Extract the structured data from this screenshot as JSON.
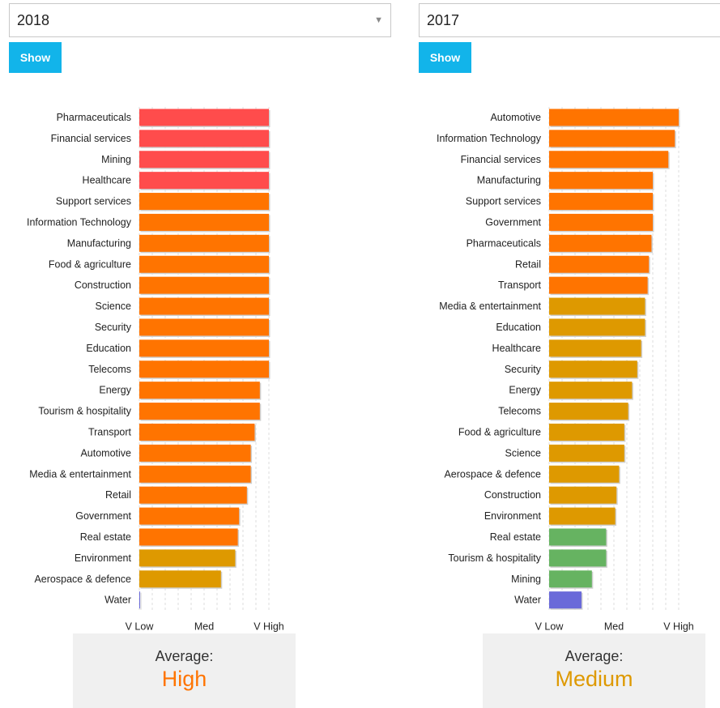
{
  "colors": {
    "very_high": "#ff4c4c",
    "high": "#ff7400",
    "medium": "#de9900",
    "low": "#66b361",
    "very_low": "#6a6ad9"
  },
  "axis_ticks": [
    "V Low",
    "Med",
    "V High"
  ],
  "panels": [
    {
      "select_value": "2018",
      "show_label": "Show",
      "average_label": "Average:",
      "average_value": "High",
      "average_color": "#ff7400",
      "chart_data": {
        "type": "bar",
        "orientation": "horizontal",
        "scale": "V Low (0) to V High (100)",
        "xlim": [
          0,
          100
        ],
        "categories": [
          "Pharmaceuticals",
          "Financial services",
          "Mining",
          "Healthcare",
          "Support services",
          "Information Technology",
          "Manufacturing",
          "Food & agriculture",
          "Construction",
          "Science",
          "Security",
          "Education",
          "Telecoms",
          "Energy",
          "Tourism & hospitality",
          "Transport",
          "Automotive",
          "Media & entertainment",
          "Retail",
          "Government",
          "Real estate",
          "Environment",
          "Aerospace & defence",
          "Water"
        ],
        "values": [
          100,
          100,
          100,
          100,
          100,
          100,
          100,
          100,
          100,
          100,
          100,
          100,
          100,
          93,
          93,
          89,
          86,
          86,
          83,
          77,
          76,
          74,
          63,
          0
        ],
        "levels": [
          "very_high",
          "very_high",
          "very_high",
          "very_high",
          "high",
          "high",
          "high",
          "high",
          "high",
          "high",
          "high",
          "high",
          "high",
          "high",
          "high",
          "high",
          "high",
          "high",
          "high",
          "high",
          "high",
          "medium",
          "medium",
          "very_low"
        ]
      }
    },
    {
      "select_value": "2017",
      "show_label": "Show",
      "average_label": "Average:",
      "average_value": "Medium",
      "average_color": "#de9900",
      "chart_data": {
        "type": "bar",
        "orientation": "horizontal",
        "scale": "V Low (0) to V High (100)",
        "xlim": [
          0,
          100
        ],
        "categories": [
          "Automotive",
          "Information Technology",
          "Financial services",
          "Manufacturing",
          "Support services",
          "Government",
          "Pharmaceuticals",
          "Retail",
          "Transport",
          "Media & entertainment",
          "Education",
          "Healthcare",
          "Security",
          "Energy",
          "Telecoms",
          "Food & agriculture",
          "Science",
          "Aerospace & defence",
          "Construction",
          "Environment",
          "Real estate",
          "Tourism & hospitality",
          "Mining",
          "Water"
        ],
        "values": [
          100,
          97,
          92,
          80,
          80,
          80,
          79,
          77,
          76,
          74,
          74,
          71,
          68,
          64,
          61,
          58,
          58,
          54,
          52,
          51,
          44,
          44,
          33,
          25
        ],
        "levels": [
          "high",
          "high",
          "high",
          "high",
          "high",
          "high",
          "high",
          "high",
          "high",
          "medium",
          "medium",
          "medium",
          "medium",
          "medium",
          "medium",
          "medium",
          "medium",
          "medium",
          "medium",
          "medium",
          "low",
          "low",
          "low",
          "very_low"
        ]
      }
    }
  ]
}
